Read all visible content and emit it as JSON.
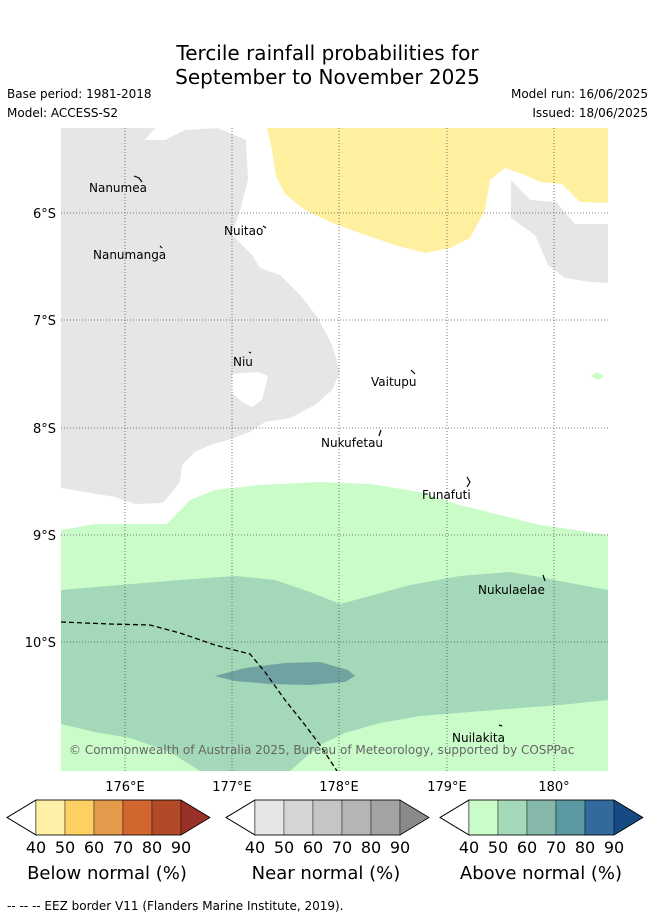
{
  "header": {
    "title_line1": "Tercile rainfall probabilities for",
    "title_line2": "September to November 2025",
    "base_period": "Base period: 1981-2018",
    "model": "Model: ACCESS-S2",
    "model_run": "Model run: 16/06/2025",
    "issued": "Issued: 18/06/2025"
  },
  "map": {
    "lat_labels": [
      "6°S",
      "7°S",
      "8°S",
      "9°S",
      "10°S"
    ],
    "lon_labels": [
      "176°E",
      "177°E",
      "178°E",
      "179°E",
      "180°"
    ],
    "places": [
      {
        "name": "Nanumea"
      },
      {
        "name": "Nuitao"
      },
      {
        "name": "Nanumanga"
      },
      {
        "name": "Niu"
      },
      {
        "name": "Vaitupu"
      },
      {
        "name": "Nukufetau"
      },
      {
        "name": "Funafuti"
      },
      {
        "name": "Nukulaelae"
      },
      {
        "name": "Nuilakita"
      }
    ],
    "copyright": "© Commonwealth of Australia 2025, Bureau of Meteorology, supported by COSPPac"
  },
  "colorbars": {
    "ticks": [
      "40",
      "50",
      "60",
      "70",
      "80",
      "90"
    ],
    "below": {
      "label": "Below normal (%)",
      "colors": [
        "#ffffff",
        "#fff0a8",
        "#fdd064",
        "#e39a4b",
        "#d1672f",
        "#b24a28",
        "#9a3126"
      ]
    },
    "near": {
      "label": "Near normal (%)",
      "colors": [
        "#ffffff",
        "#e6e6e6",
        "#d5d5d5",
        "#c5c5c5",
        "#b5b5b5",
        "#a3a3a3",
        "#8a8a8a"
      ]
    },
    "above": {
      "label": "Above normal (%)",
      "colors": [
        "#ffffff",
        "#c9fcc9",
        "#a3d8b8",
        "#85b8ab",
        "#5b98a1",
        "#336a9e",
        "#154a82"
      ]
    }
  },
  "footer": {
    "eez_legend": "-- -- -- EEZ border V11 (Flanders Marine Institute, 2019)."
  }
}
